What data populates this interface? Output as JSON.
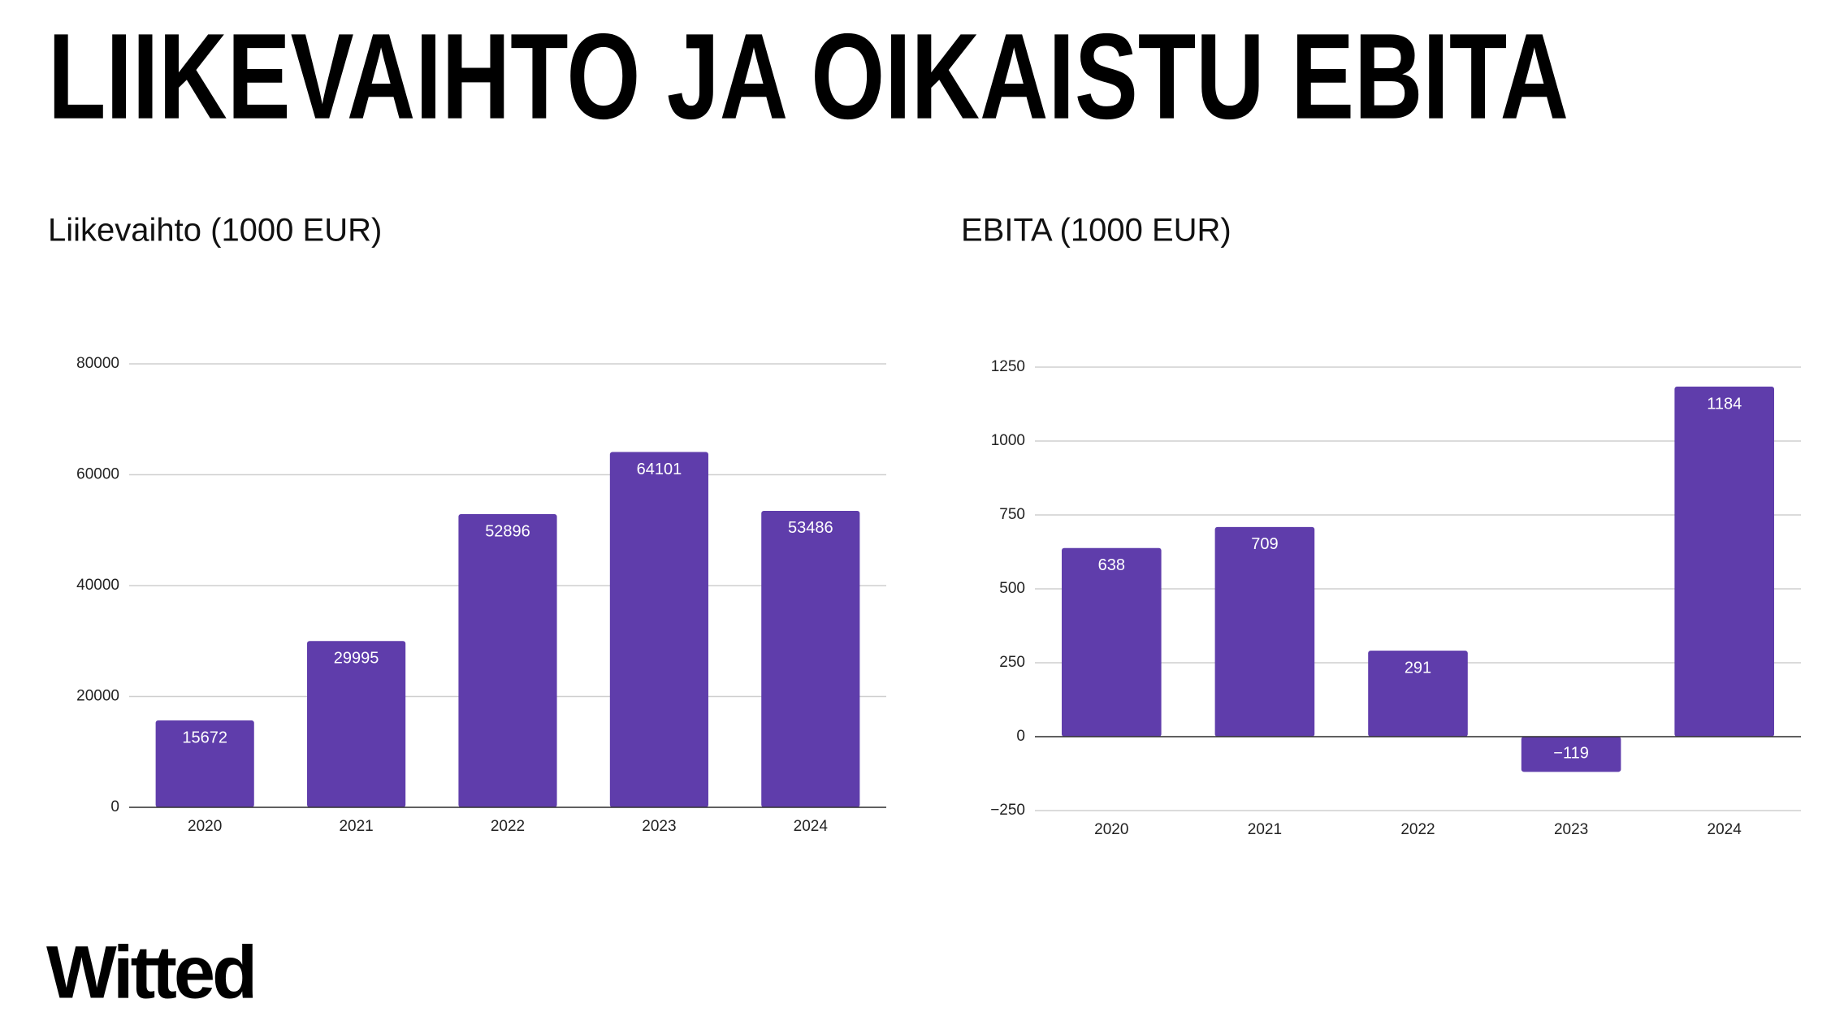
{
  "page": {
    "title": "LIIKEVAIHTO JA OIKAISTU EBITA",
    "logo": "Witted"
  },
  "chart_data": [
    {
      "type": "bar",
      "title": "Liikevaihto (1000 EUR)",
      "categories": [
        "2020",
        "2021",
        "2022",
        "2023",
        "2024"
      ],
      "values": [
        15672,
        29995,
        52896,
        64101,
        53486
      ],
      "color": "#5f3dab",
      "ylim": [
        0,
        80000
      ],
      "yticks": [
        0,
        20000,
        40000,
        60000,
        80000
      ],
      "grid": true
    },
    {
      "type": "bar",
      "title": "EBITA (1000 EUR)",
      "categories": [
        "2020",
        "2021",
        "2022",
        "2023",
        "2024"
      ],
      "values": [
        638,
        709,
        291,
        -119,
        1184
      ],
      "value_labels": [
        "638",
        "709",
        "291",
        "−119",
        "1184"
      ],
      "color": "#5f3dab",
      "ylim": [
        -250,
        1250
      ],
      "yticks": [
        {
          "value": -250,
          "label": "−250"
        },
        0,
        250,
        500,
        750,
        1000,
        1250
      ],
      "grid": true
    }
  ]
}
